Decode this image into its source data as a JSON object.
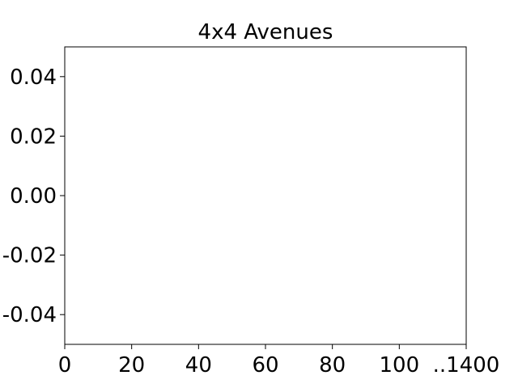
{
  "chart_data": {
    "type": "line",
    "title": "4x4 Avenues",
    "xlabel": "",
    "ylabel": "",
    "xlim": [
      0,
      120
    ],
    "ylim": [
      -0.05,
      0.05
    ],
    "x_ticks": [
      0,
      20,
      40,
      60,
      80,
      100
    ],
    "x_tick_labels": [
      "0",
      "20",
      "40",
      "60",
      "80",
      "100"
    ],
    "x_offset_label": "..1400",
    "y_ticks": [
      0.04,
      0.02,
      0.0,
      -0.02,
      -0.04
    ],
    "y_tick_labels": [
      "0.04",
      "0.02",
      "0.00",
      "-0.02",
      "-0.04"
    ],
    "series": [],
    "grid": false,
    "legend": "none"
  }
}
